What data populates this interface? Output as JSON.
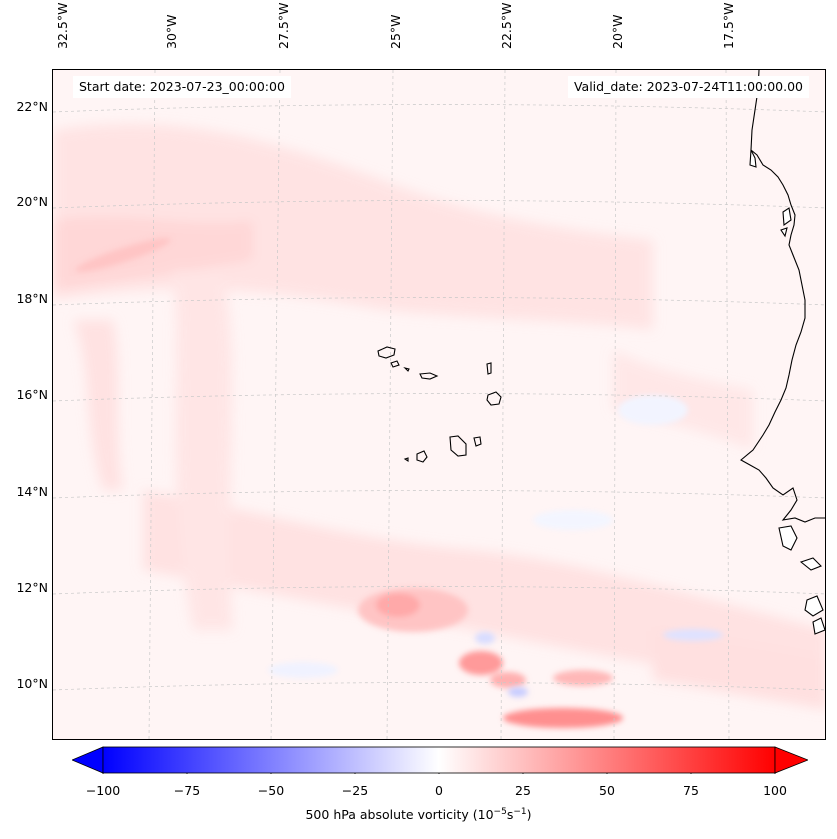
{
  "map": {
    "longitude_labels": [
      "32.5°W",
      "30°W",
      "27.5°W",
      "25°W",
      "22.5°W",
      "20°W",
      "17.5°W"
    ],
    "latitude_labels": [
      "22°N",
      "20°N",
      "18°N",
      "16°N",
      "14°N",
      "12°N",
      "10°N"
    ],
    "start_date": "Start date: 2023-07-23_00:00:00",
    "valid_date": "Valid_date: 2023-07-24T11:00:00.00"
  },
  "colorbar": {
    "ticks": [
      "−100",
      "−75",
      "−50",
      "−25",
      "0",
      "25",
      "50",
      "75",
      "100"
    ],
    "title_prefix": "500 hPa absolute vorticity (10",
    "title_sup1": "−5",
    "title_mid": "s",
    "title_sup2": "−1",
    "title_suffix": ")",
    "min_color": "#0000ff",
    "mid_color": "#ffffff",
    "max_color": "#ff0000"
  }
}
